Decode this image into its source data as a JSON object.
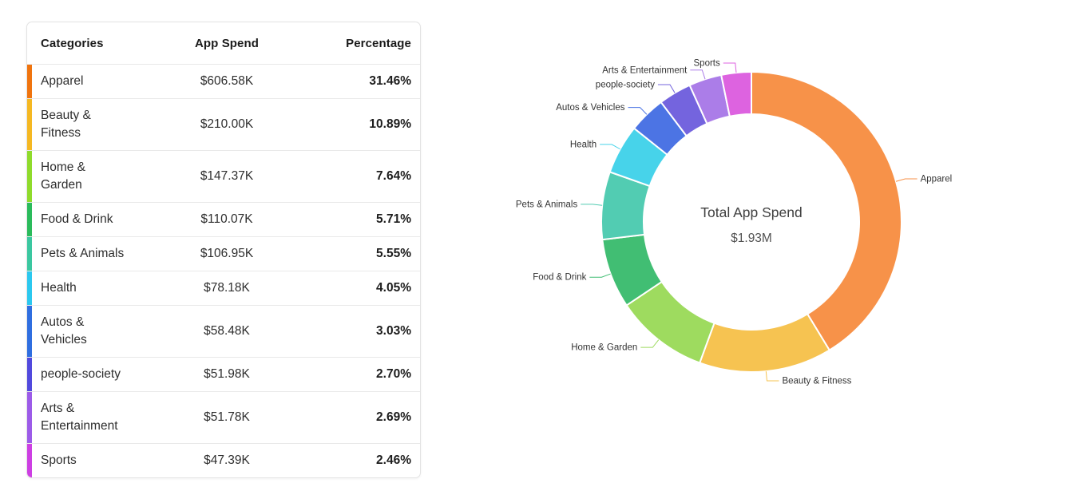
{
  "table": {
    "columns": [
      {
        "label": "Categories"
      },
      {
        "label": "App Spend"
      },
      {
        "label": "Percentage"
      }
    ],
    "rows": [
      {
        "category": "Apparel",
        "spend": "$606.58K",
        "percentage": "31.46%",
        "color": "#F0740E"
      },
      {
        "category": "Beauty & Fitness",
        "spend": "$210.00K",
        "percentage": "10.89%",
        "color": "#F5B822"
      },
      {
        "category": "Home & Garden",
        "spend": "$147.37K",
        "percentage": "7.64%",
        "color": "#8FDB2B"
      },
      {
        "category": "Food & Drink",
        "spend": "$110.07K",
        "percentage": "5.71%",
        "color": "#2ABB5B"
      },
      {
        "category": "Pets & Animals",
        "spend": "$106.95K",
        "percentage": "5.55%",
        "color": "#3AC7A0"
      },
      {
        "category": "Health",
        "spend": "$78.18K",
        "percentage": "4.05%",
        "color": "#2BC8EF"
      },
      {
        "category": "Autos & Vehicles",
        "spend": "$58.48K",
        "percentage": "3.03%",
        "color": "#2F6EE0"
      },
      {
        "category": "people-society",
        "spend": "$51.98K",
        "percentage": "2.70%",
        "color": "#5149DD"
      },
      {
        "category": "Arts & Entertainment",
        "spend": "$51.78K",
        "percentage": "2.69%",
        "color": "#9C5BE8"
      },
      {
        "category": "Sports",
        "spend": "$47.39K",
        "percentage": "2.46%",
        "color": "#CD3FE3"
      }
    ]
  },
  "chart_data": {
    "type": "pie",
    "subtype": "donut",
    "center_label": {
      "title": "Total App Spend",
      "value": "$1.93M"
    },
    "values_unit": "$K",
    "label_layout": "outside-with-leader-lines",
    "slices": [
      {
        "name": "Apparel",
        "value": 606.58,
        "percent_of_total": "31.46%",
        "color": "#F79249"
      },
      {
        "name": "Beauty & Fitness",
        "value": 210.0,
        "percent_of_total": "10.89%",
        "color": "#F6C351"
      },
      {
        "name": "Home & Garden",
        "value": 147.37,
        "percent_of_total": "7.64%",
        "color": "#9EDB5F"
      },
      {
        "name": "Food & Drink",
        "value": 110.07,
        "percent_of_total": "5.71%",
        "color": "#41BE73"
      },
      {
        "name": "Pets & Animals",
        "value": 106.95,
        "percent_of_total": "5.55%",
        "color": "#52CCB2"
      },
      {
        "name": "Health",
        "value": 78.18,
        "percent_of_total": "4.05%",
        "color": "#47D3EA"
      },
      {
        "name": "Autos & Vehicles",
        "value": 58.48,
        "percent_of_total": "3.03%",
        "color": "#4C74E4"
      },
      {
        "name": "people-society",
        "value": 51.98,
        "percent_of_total": "2.70%",
        "color": "#7464DE"
      },
      {
        "name": "Arts & Entertainment",
        "value": 51.78,
        "percent_of_total": "2.69%",
        "color": "#AB7DE8"
      },
      {
        "name": "Sports",
        "value": 47.39,
        "percent_of_total": "2.46%",
        "color": "#DD63E0"
      }
    ]
  }
}
